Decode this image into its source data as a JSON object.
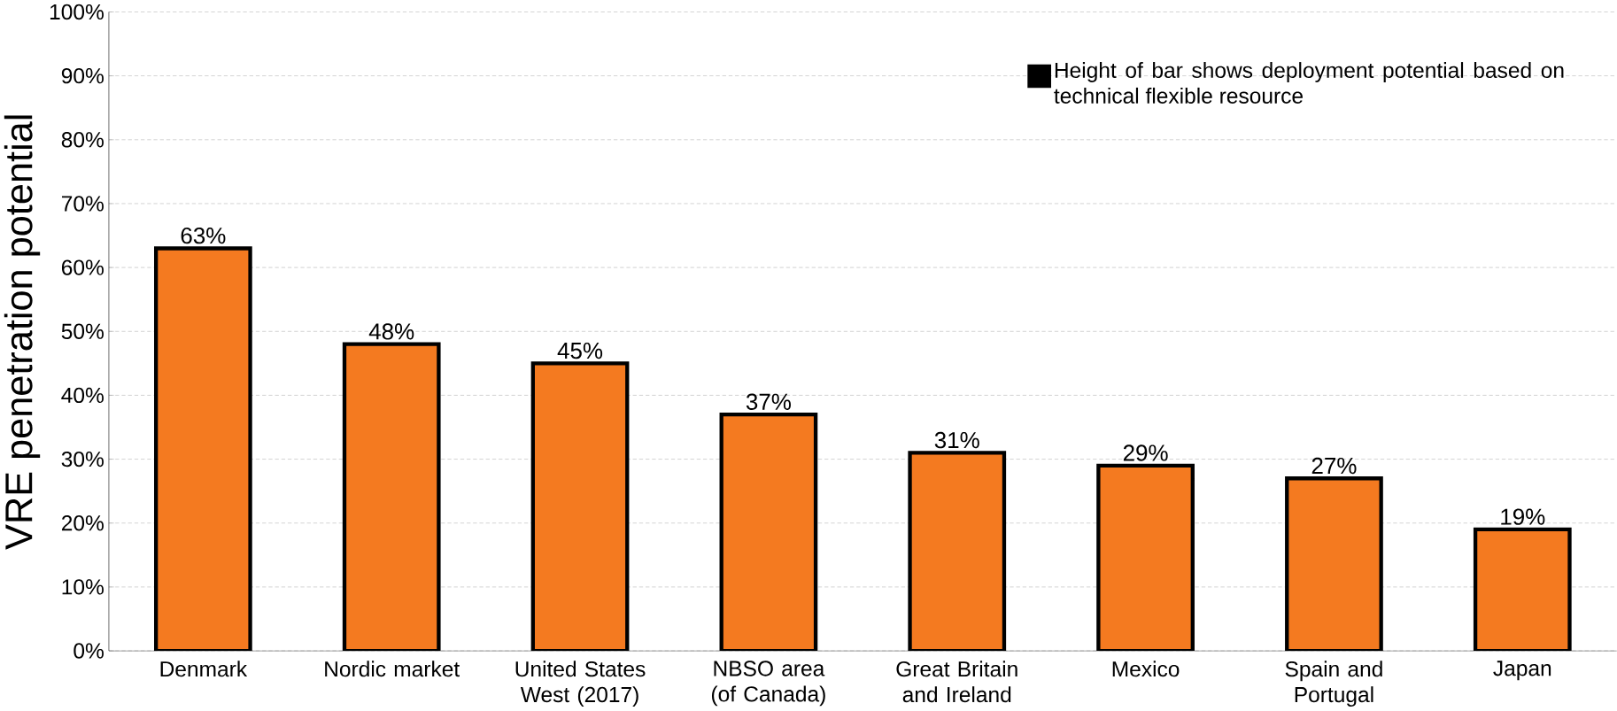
{
  "chart_data": {
    "type": "bar",
    "ylabel": "VRE penetration potential",
    "categories": [
      "Denmark",
      "Nordic market",
      "United States West (2017)",
      "NBSO area (of Canada)",
      "Great Britain and Ireland",
      "Mexico",
      "Spain and Portugal",
      "Japan"
    ],
    "series": [
      {
        "name": "Height of bar shows deployment potential based on technical flexible resource",
        "color": "#f47a20",
        "values": [
          63,
          48,
          45,
          37,
          31,
          29,
          27,
          19
        ],
        "value_labels": [
          "63%",
          "48%",
          "45%",
          "37%",
          "31%",
          "29%",
          "27%",
          "19%"
        ]
      }
    ],
    "ylim": [
      0,
      100
    ],
    "yticks": [
      {
        "value": 0,
        "label": "0%"
      },
      {
        "value": 10,
        "label": "10%"
      },
      {
        "value": 20,
        "label": "20%"
      },
      {
        "value": 30,
        "label": "30%"
      },
      {
        "value": 40,
        "label": "40%"
      },
      {
        "value": 50,
        "label": "50%"
      },
      {
        "value": 60,
        "label": "60%"
      },
      {
        "value": 70,
        "label": "70%"
      },
      {
        "value": 80,
        "label": "80%"
      },
      {
        "value": 90,
        "label": "90%"
      },
      {
        "value": 100,
        "label": "100%"
      }
    ],
    "grid": "y",
    "legend": "top right"
  }
}
